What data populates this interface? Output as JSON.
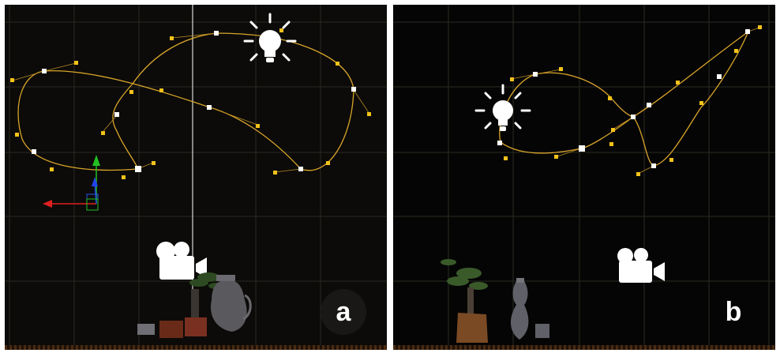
{
  "panels": [
    {
      "label": "a"
    },
    {
      "label": "b"
    }
  ],
  "icons": {
    "light": "lightbulb-icon",
    "camera": "movie-camera-icon"
  },
  "colors": {
    "background_a": "#0c0b09",
    "background_b": "#050505",
    "curve": "#d9a52a",
    "control_point": "#f3c21a",
    "key_point": "#ffffff",
    "axis_x": "#e02020",
    "axis_y": "#22c022",
    "axis_z": "#2244ee"
  }
}
